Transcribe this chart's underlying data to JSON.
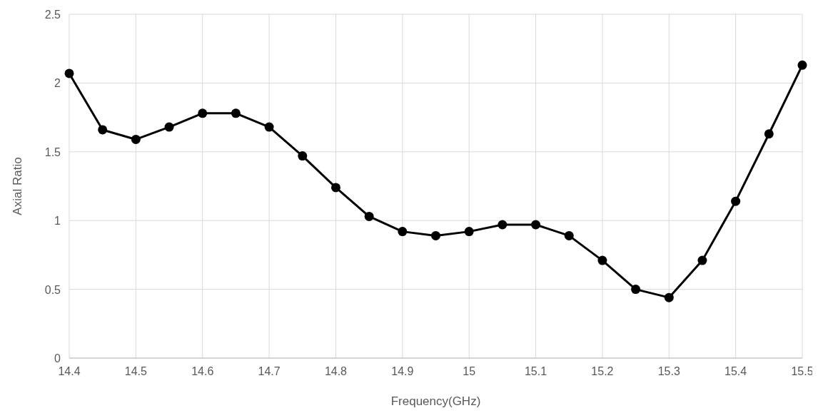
{
  "chart_data": {
    "type": "line",
    "xlabel": "Frequency(GHz)",
    "ylabel": "Axial Ratio",
    "x": [
      14.4,
      14.45,
      14.5,
      14.55,
      14.6,
      14.65,
      14.7,
      14.75,
      14.8,
      14.85,
      14.9,
      14.95,
      15,
      15.05,
      15.1,
      15.15,
      15.2,
      15.25,
      15.3,
      15.35,
      15.4,
      15.45,
      15.5
    ],
    "series": [
      {
        "color": "#000000",
        "values": [
          2.07,
          1.66,
          1.59,
          1.68,
          1.78,
          1.78,
          1.68,
          1.47,
          1.24,
          1.03,
          0.92,
          0.89,
          0.92,
          0.97,
          0.97,
          0.89,
          0.71,
          0.5,
          0.44,
          0.71,
          1.14,
          1.63,
          2.13
        ]
      }
    ],
    "xlim": [
      14.4,
      15.5
    ],
    "xticks": [
      14.4,
      14.5,
      14.6,
      14.7,
      14.8,
      14.9,
      15,
      15.1,
      15.2,
      15.3,
      15.4,
      15.5
    ],
    "ylim": [
      0,
      2.5
    ],
    "yticks": [
      0,
      0.5,
      1,
      1.5,
      2,
      2.5
    ],
    "grid": true,
    "marker": "circle",
    "line_style": "solid"
  }
}
